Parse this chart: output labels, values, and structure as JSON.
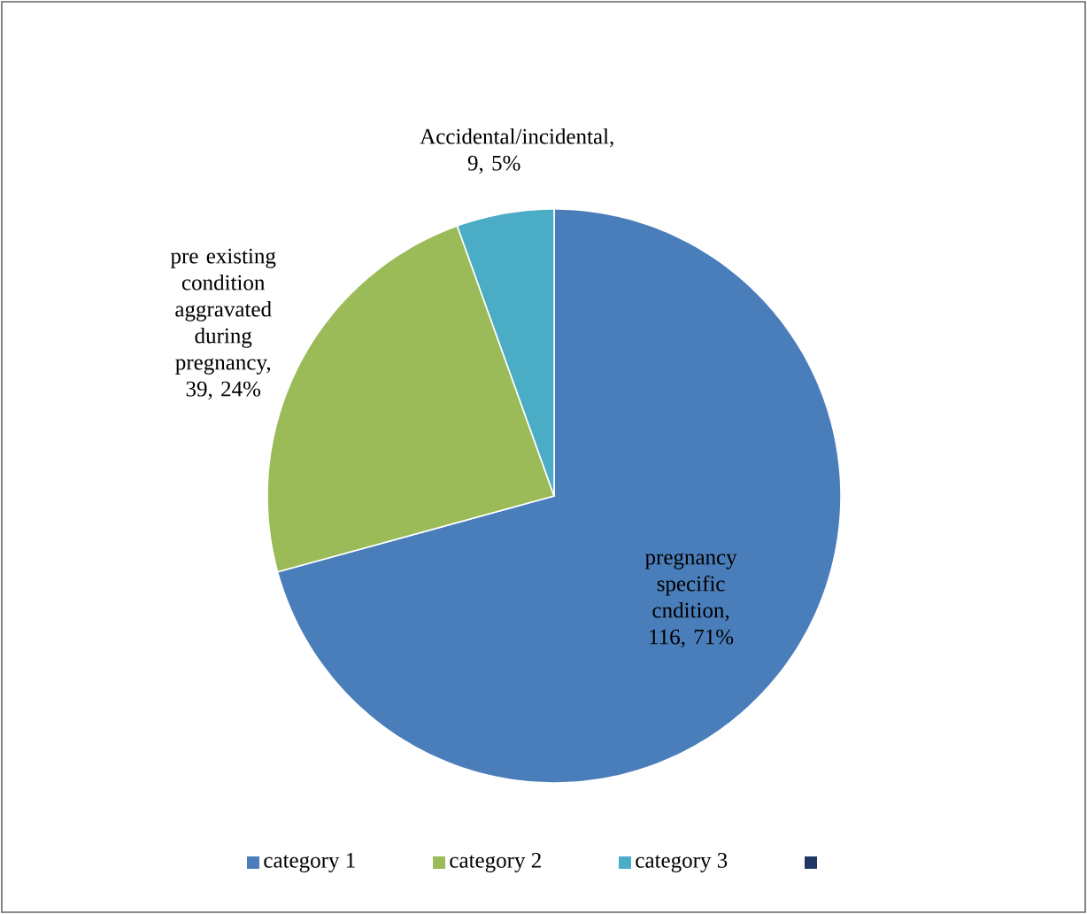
{
  "chart_data": {
    "type": "pie",
    "categories": [
      "category 1",
      "category 2",
      "category 3",
      null
    ],
    "values": [
      116,
      39,
      9,
      0
    ],
    "colors": [
      "#4a7ebb",
      "#9bbb59",
      "#4bacc6",
      "#1f3864"
    ],
    "value_labels": [
      "pregnancy specific cndition, 116, 71%",
      "pre existing condition aggravated during pregnancy, 39, 24%",
      "Accidental/incidental, 9, 5%",
      null
    ],
    "legend": "bottom"
  }
}
